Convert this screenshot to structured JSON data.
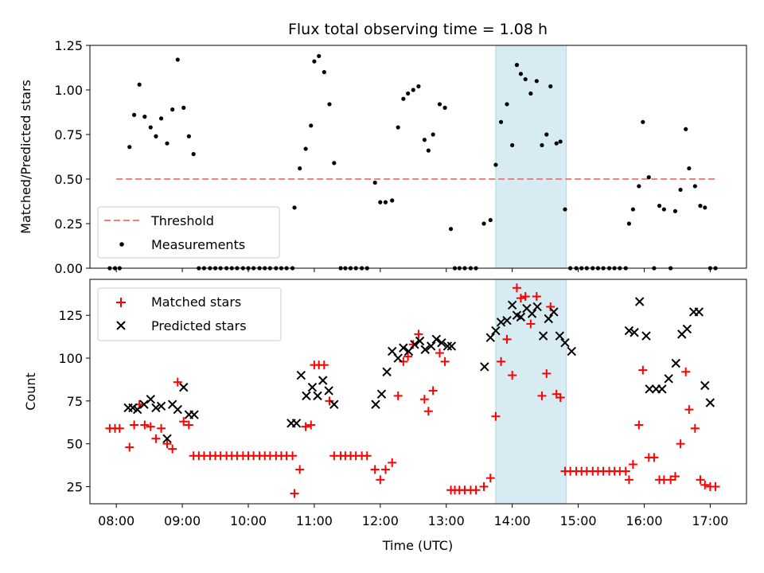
{
  "chart_data": [
    {
      "type": "scatter",
      "title": "Flux total observing time = 1.08 h",
      "xlabel": "",
      "ylabel": "Matched/Predicted stars",
      "ylim": [
        0,
        1.25
      ],
      "yticks": [
        "0.00",
        "0.25",
        "0.50",
        "0.75",
        "1.00",
        "1.25"
      ],
      "x_unit": "hours UTC",
      "xlim": [
        7.6,
        17.55
      ],
      "highlight_span": [
        13.75,
        14.82
      ],
      "threshold": {
        "name": "Threshold",
        "value": 0.5,
        "x_range": [
          8.0,
          17.1
        ],
        "color": "#f08080"
      },
      "legend": {
        "position": "lower-left",
        "entries": [
          "Threshold",
          "Measurements"
        ]
      },
      "series": [
        {
          "name": "Measurements",
          "x": [
            7.9,
            7.98,
            8.05,
            8.2,
            8.27,
            8.35,
            8.43,
            8.52,
            8.6,
            8.68,
            8.77,
            8.85,
            8.93,
            9.02,
            9.1,
            9.17,
            9.25,
            9.33,
            9.42,
            9.5,
            9.58,
            9.67,
            9.75,
            9.83,
            9.92,
            10.0,
            10.08,
            10.17,
            10.25,
            10.33,
            10.42,
            10.5,
            10.58,
            10.67,
            10.7,
            10.78,
            10.87,
            10.95,
            11.0,
            11.07,
            11.15,
            11.23,
            11.3,
            11.4,
            11.47,
            11.55,
            11.63,
            11.72,
            11.8,
            11.92,
            12.0,
            12.08,
            12.18,
            12.27,
            12.35,
            12.42,
            12.5,
            12.58,
            12.67,
            12.73,
            12.8,
            12.9,
            12.98,
            13.07,
            13.13,
            13.2,
            13.28,
            13.37,
            13.45,
            13.57,
            13.67,
            13.75,
            13.83,
            13.92,
            14.0,
            14.07,
            14.13,
            14.2,
            14.28,
            14.37,
            14.45,
            14.52,
            14.58,
            14.67,
            14.73,
            14.8,
            14.88,
            14.97,
            15.05,
            15.13,
            15.22,
            15.3,
            15.38,
            15.47,
            15.55,
            15.63,
            15.72,
            15.77,
            15.83,
            15.92,
            15.98,
            16.07,
            16.15,
            16.23,
            16.3,
            16.4,
            16.47,
            16.55,
            16.63,
            16.68,
            16.77,
            16.85,
            16.92,
            17.0,
            17.08
          ],
          "y": [
            0.0,
            0.0,
            0.0,
            0.68,
            0.86,
            1.03,
            0.85,
            0.79,
            0.74,
            0.84,
            0.7,
            0.89,
            1.17,
            0.9,
            0.74,
            0.64,
            0.0,
            0.0,
            0.0,
            0.0,
            0.0,
            0.0,
            0.0,
            0.0,
            0.0,
            0.0,
            0.0,
            0.0,
            0.0,
            0.0,
            0.0,
            0.0,
            0.0,
            0.0,
            0.34,
            0.56,
            0.67,
            0.8,
            1.16,
            1.19,
            1.1,
            0.92,
            0.59,
            0.0,
            0.0,
            0.0,
            0.0,
            0.0,
            0.0,
            0.48,
            0.37,
            0.37,
            0.38,
            0.79,
            0.95,
            0.98,
            1.0,
            1.02,
            0.72,
            0.66,
            0.75,
            0.92,
            0.9,
            0.22,
            0.0,
            0.0,
            0.0,
            0.0,
            0.0,
            0.25,
            0.27,
            0.58,
            0.82,
            0.92,
            0.69,
            1.14,
            1.09,
            1.06,
            0.98,
            1.05,
            0.69,
            0.75,
            1.02,
            0.7,
            0.71,
            0.33,
            0.0,
            0.0,
            0.0,
            0.0,
            0.0,
            0.0,
            0.0,
            0.0,
            0.0,
            0.0,
            0.0,
            0.25,
            0.33,
            0.46,
            0.82,
            0.51,
            0.0,
            0.35,
            0.33,
            0.0,
            0.32,
            0.44,
            0.78,
            0.56,
            0.46,
            0.35,
            0.34,
            0.0,
            0.0
          ],
          "color": "#000000",
          "marker": "dot"
        }
      ]
    },
    {
      "type": "scatter",
      "title": "",
      "xlabel": "Time (UTC)",
      "ylabel": "Count",
      "ylim": [
        15,
        146
      ],
      "yticks": [
        "25",
        "50",
        "75",
        "100",
        "125"
      ],
      "xticks": [
        "08:00",
        "09:00",
        "10:00",
        "11:00",
        "12:00",
        "13:00",
        "14:00",
        "15:00",
        "16:00",
        "17:00"
      ],
      "x_unit": "hours UTC",
      "xlim": [
        7.6,
        17.55
      ],
      "highlight_span": [
        13.75,
        14.82
      ],
      "legend": {
        "position": "upper-left",
        "entries": [
          "Matched stars",
          "Predicted stars"
        ]
      },
      "series": [
        {
          "name": "Matched stars",
          "color": "#ff0000",
          "marker": "plus",
          "x": [
            7.9,
            7.98,
            8.05,
            8.2,
            8.27,
            8.35,
            8.43,
            8.52,
            8.6,
            8.68,
            8.77,
            8.85,
            8.93,
            9.02,
            9.1,
            9.17,
            9.25,
            9.33,
            9.42,
            9.5,
            9.58,
            9.67,
            9.75,
            9.83,
            9.92,
            10.0,
            10.08,
            10.17,
            10.25,
            10.33,
            10.42,
            10.5,
            10.58,
            10.67,
            10.7,
            10.78,
            10.87,
            10.95,
            11.0,
            11.07,
            11.15,
            11.23,
            11.3,
            11.4,
            11.47,
            11.55,
            11.63,
            11.72,
            11.8,
            11.92,
            12.0,
            12.08,
            12.18,
            12.27,
            12.35,
            12.42,
            12.5,
            12.58,
            12.67,
            12.73,
            12.8,
            12.9,
            12.98,
            13.07,
            13.13,
            13.2,
            13.28,
            13.37,
            13.45,
            13.57,
            13.67,
            13.75,
            13.83,
            13.92,
            14.0,
            14.07,
            14.13,
            14.2,
            14.28,
            14.37,
            14.45,
            14.52,
            14.58,
            14.67,
            14.73,
            14.8,
            14.88,
            14.97,
            15.05,
            15.13,
            15.22,
            15.3,
            15.38,
            15.47,
            15.55,
            15.63,
            15.72,
            15.77,
            15.83,
            15.92,
            15.98,
            16.07,
            16.15,
            16.23,
            16.3,
            16.4,
            16.47,
            16.55,
            16.63,
            16.68,
            16.77,
            16.85,
            16.92,
            17.0,
            17.08
          ],
          "y": [
            59,
            59,
            59,
            48,
            61,
            73,
            61,
            60,
            53,
            59,
            50,
            47,
            86,
            63,
            61,
            43,
            43,
            43,
            43,
            43,
            43,
            43,
            43,
            43,
            43,
            43,
            43,
            43,
            43,
            43,
            43,
            43,
            43,
            43,
            21,
            35,
            60,
            61,
            96,
            96,
            96,
            75,
            43,
            43,
            43,
            43,
            43,
            43,
            43,
            35,
            29,
            35,
            39,
            78,
            98,
            101,
            108,
            114,
            76,
            69,
            81,
            103,
            98,
            23,
            23,
            23,
            23,
            23,
            23,
            25,
            30,
            66,
            98,
            111,
            90,
            141,
            135,
            136,
            120,
            136,
            78,
            91,
            130,
            79,
            77,
            34,
            34,
            34,
            34,
            34,
            34,
            34,
            34,
            34,
            34,
            34,
            34,
            29,
            38,
            61,
            93,
            42,
            42,
            29,
            29,
            29,
            31,
            50,
            92,
            70,
            59,
            29,
            26,
            25,
            25
          ]
        },
        {
          "name": "Predicted stars",
          "color": "#000000",
          "marker": "x",
          "x": [
            8.18,
            8.25,
            8.32,
            8.42,
            8.52,
            8.6,
            8.68,
            8.77,
            8.85,
            8.93,
            9.02,
            9.1,
            9.18,
            10.65,
            10.73,
            10.8,
            10.88,
            10.97,
            11.05,
            11.13,
            11.22,
            11.3,
            11.93,
            12.02,
            12.1,
            12.18,
            12.27,
            12.35,
            12.43,
            12.52,
            12.6,
            12.68,
            12.77,
            12.85,
            12.93,
            13.02,
            13.08,
            13.58,
            13.67,
            13.75,
            13.83,
            13.92,
            14.0,
            14.07,
            14.13,
            14.22,
            14.3,
            14.38,
            14.47,
            14.55,
            14.63,
            14.72,
            14.8,
            14.9,
            15.77,
            15.85,
            15.93,
            16.03,
            16.08,
            16.18,
            16.27,
            16.37,
            16.48,
            16.57,
            16.65,
            16.75,
            16.83,
            16.92,
            17.0
          ],
          "y": [
            71,
            71,
            70,
            73,
            76,
            71,
            72,
            53,
            73,
            70,
            83,
            67,
            67,
            62,
            62,
            90,
            78,
            83,
            78,
            87,
            81,
            73,
            73,
            79,
            92,
            104,
            100,
            106,
            104,
            108,
            110,
            105,
            107,
            111,
            109,
            107,
            107,
            95,
            112,
            116,
            121,
            122,
            131,
            125,
            124,
            129,
            126,
            130,
            113,
            123,
            127,
            113,
            109,
            104,
            116,
            115,
            133,
            113,
            82,
            82,
            82,
            88,
            97,
            114,
            117,
            127,
            127,
            84,
            74
          ]
        }
      ]
    }
  ]
}
